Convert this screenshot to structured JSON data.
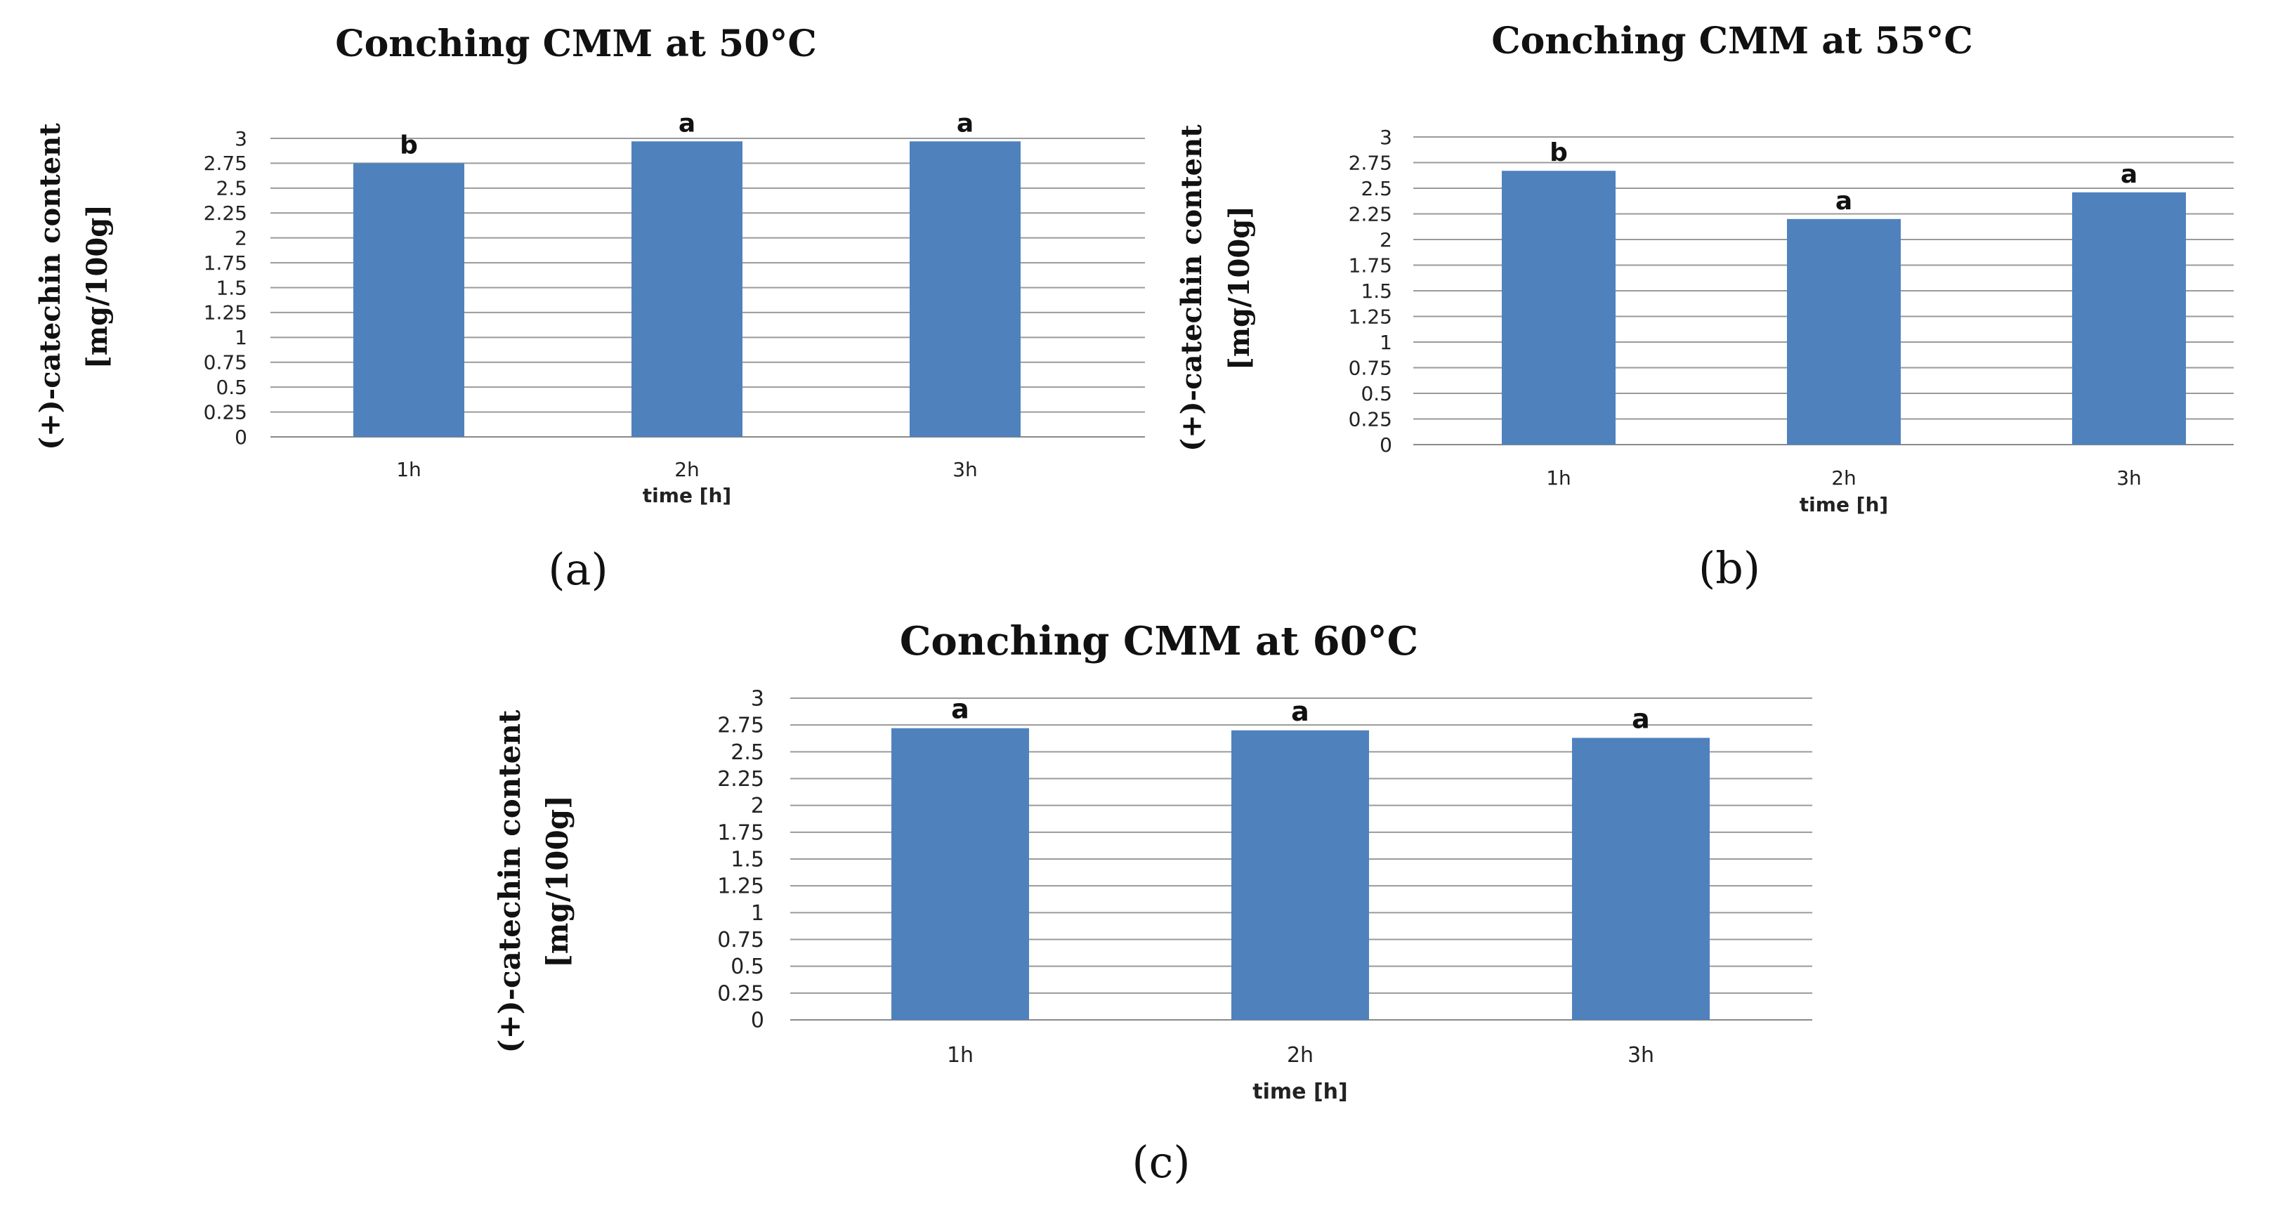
{
  "chart_data": [
    {
      "type": "bar",
      "panel": "(a)",
      "title": "Conching CMM at 50°C",
      "ylabel_line1": "(+)-catechin content",
      "ylabel_line2": "[mg/100g]",
      "xlabel": "time [h]",
      "categories": [
        "1h",
        "2h",
        "3h"
      ],
      "values": [
        2.75,
        2.97,
        2.97
      ],
      "data_labels": [
        "b",
        "a",
        "a"
      ],
      "ylim": [
        0,
        3
      ],
      "yticks": [
        "0",
        "0.25",
        "0.5",
        "0.75",
        "1",
        "1.25",
        "1.5",
        "1.75",
        "2",
        "2.25",
        "2.5",
        "2.75",
        "3"
      ],
      "color": "#4f81bd",
      "grid": true
    },
    {
      "type": "bar",
      "panel": "(b)",
      "title": "Conching CMM at 55°C",
      "ylabel_line1": "(+)-catechin content",
      "ylabel_line2": "[mg/100g]",
      "xlabel": "time [h]",
      "categories": [
        "1h",
        "2h",
        "3h"
      ],
      "values": [
        2.67,
        2.2,
        2.46
      ],
      "data_labels": [
        "b",
        "a",
        "a"
      ],
      "ylim": [
        0,
        3
      ],
      "yticks": [
        "0",
        "0.25",
        "0.5",
        "0.75",
        "1",
        "1.25",
        "1.5",
        "1.75",
        "2",
        "2.25",
        "2.5",
        "2.75",
        "3"
      ],
      "color": "#4f81bd",
      "grid": true
    },
    {
      "type": "bar",
      "panel": "(c)",
      "title": "Conching CMM at 60°C",
      "ylabel_line1": "(+)-catechin content",
      "ylabel_line2": "[mg/100g]",
      "xlabel": "time [h]",
      "categories": [
        "1h",
        "2h",
        "3h"
      ],
      "values": [
        2.72,
        2.7,
        2.63
      ],
      "data_labels": [
        "a",
        "a",
        "a"
      ],
      "ylim": [
        0,
        3
      ],
      "yticks": [
        "0",
        "0.25",
        "0.5",
        "0.75",
        "1",
        "1.25",
        "1.5",
        "1.75",
        "2",
        "2.25",
        "2.5",
        "2.75",
        "3"
      ],
      "color": "#4f81bd",
      "grid": true
    }
  ]
}
